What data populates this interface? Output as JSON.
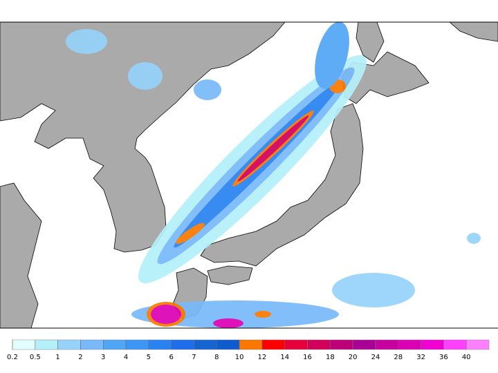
{
  "colorbar": {
    "ticks": [
      0.2,
      0.5,
      1,
      2,
      3,
      4,
      5,
      6,
      7,
      8,
      10,
      12,
      14,
      16,
      18,
      20,
      24,
      28,
      32,
      36,
      40
    ],
    "colors": [
      "#e1ffff",
      "#b4f0fa",
      "#96d2fa",
      "#78b9fa",
      "#50a5f5",
      "#3c96f5",
      "#2882f0",
      "#1e6eeb",
      "#1464d2",
      "#0f5acd",
      "#fa7800",
      "#ff0000",
      "#e6003c",
      "#d2005a",
      "#be0078",
      "#aa0096",
      "#c800a0",
      "#dc00b4",
      "#f000d2",
      "#ff40ff",
      "#ff80ff"
    ]
  }
}
